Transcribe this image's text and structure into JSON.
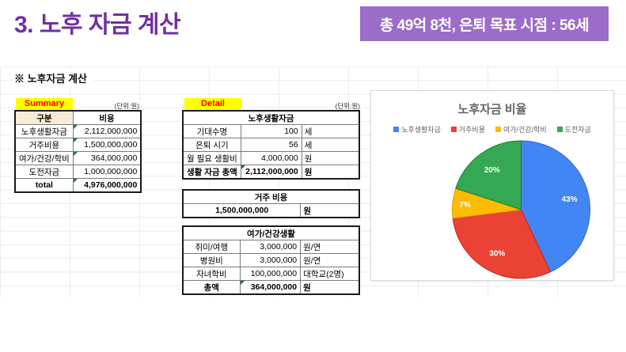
{
  "slide": {
    "title": "3. 노후 자금 계산",
    "badge": "총 49억 8천, 은퇴 목표 시점  : 56세",
    "section_heading": "※ 노후자금 계산"
  },
  "summary": {
    "label": "Summary",
    "unit_note": "(단위:원)",
    "col_headers": [
      "구분",
      "비용"
    ],
    "rows": [
      {
        "label": "노후생활자금",
        "value": "2,112,000,000",
        "flag": true,
        "bold": false
      },
      {
        "label": "거주비용",
        "value": "1,500,000,000",
        "flag": true,
        "bold": false
      },
      {
        "label": "여가/건강/학비",
        "value": "364,000,000",
        "flag": true,
        "bold": false
      },
      {
        "label": "도전자금",
        "value": "1,000,000,000",
        "flag": false,
        "bold": false
      },
      {
        "label": "total",
        "value": "4,976,000,000",
        "flag": true,
        "bold": true
      }
    ]
  },
  "detail": {
    "label": "Detail",
    "unit_note": "(단위:원)",
    "tables": [
      {
        "title": "노후생활자금",
        "rows": [
          {
            "label": "기대수명",
            "value": "100",
            "unit": "세",
            "flag": false,
            "bold": false
          },
          {
            "label": "은퇴 시기",
            "value": "56",
            "unit": "세",
            "flag": false,
            "bold": false
          },
          {
            "label": "월 필요 생활비",
            "value": "4,000,000",
            "unit": "원",
            "flag": false,
            "bold": false
          },
          {
            "label": "생활 자금 총액",
            "value": "2,112,000,000",
            "unit": "원",
            "flag": true,
            "bold": true
          }
        ]
      },
      {
        "title": "거주 비용",
        "rows": [
          {
            "value": "1,500,000,000",
            "unit": "원",
            "flag": false,
            "bold": true
          }
        ]
      },
      {
        "title": "여가/건강생활",
        "rows": [
          {
            "label": "취미/여행",
            "value": "3,000,000",
            "unit": "원/연",
            "flag": false,
            "bold": false
          },
          {
            "label": "병원비",
            "value": "3,000,000",
            "unit": "원/연",
            "flag": false,
            "bold": false
          },
          {
            "label": "자녀학비",
            "value": "100,000,000",
            "unit": "대학교(2명)",
            "flag": false,
            "bold": false
          },
          {
            "label": "총액",
            "value": "364,000,000",
            "unit": "원",
            "flag": true,
            "bold": true
          }
        ]
      }
    ]
  },
  "chart_data": {
    "type": "pie",
    "title": "노후자금 비율",
    "categories": [
      "노후생활자금",
      "거주비용",
      "여가/건강/학비",
      "도전자금"
    ],
    "values": [
      43,
      30,
      7,
      20
    ],
    "unit": "%",
    "slice_labels": [
      "43%",
      "30%",
      "7%",
      "20%"
    ],
    "colors": [
      "#4285F4",
      "#EA4335",
      "#FBBC04",
      "#34A853"
    ],
    "stroke_colors": [
      "#3367D6",
      "#C5221F",
      "#E8A000",
      "#188038"
    ],
    "label_color": "#FFFFFF",
    "legend_position": "top",
    "start_angle_deg": 0,
    "direction": "clockwise"
  },
  "colors": {
    "title_purple": "#7030A0",
    "badge_purple": "#9C6CC9",
    "label_bg_yellow": "#FFFF00",
    "label_text_red": "#FF0000",
    "header_beige": "#F6ECD9",
    "flag_green": "#1E7145"
  }
}
